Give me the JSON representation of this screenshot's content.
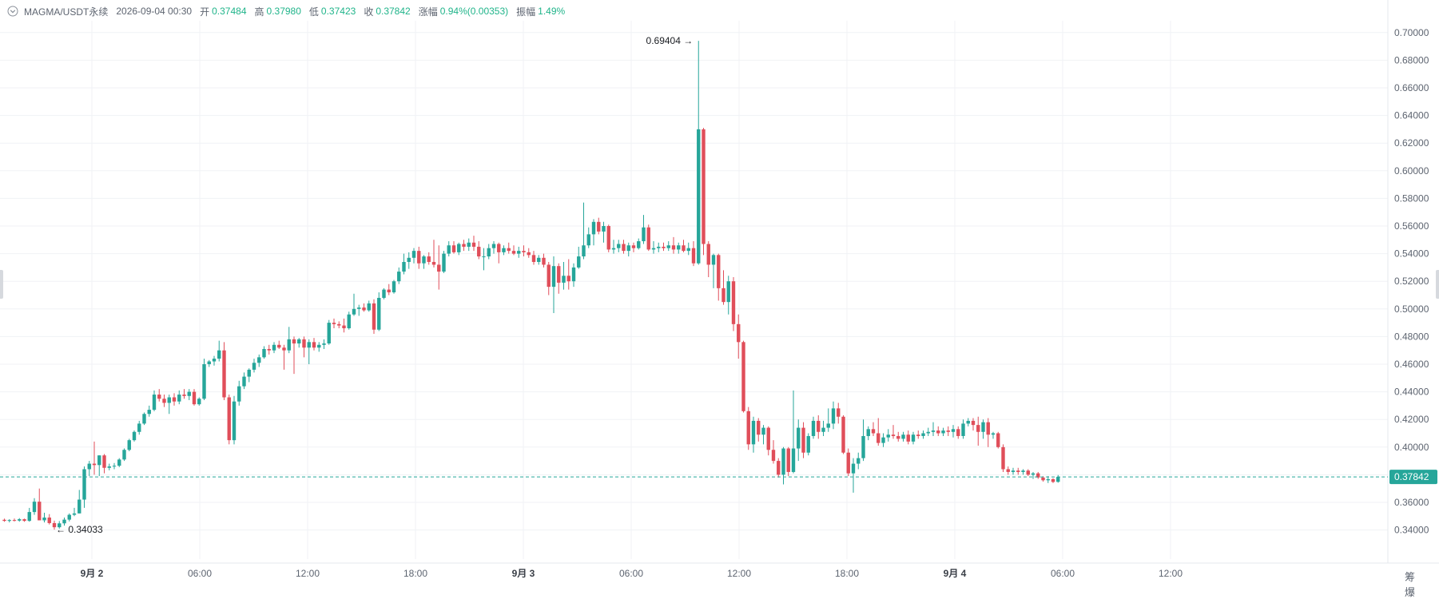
{
  "header": {
    "symbol": "MAGMA/USDT永续",
    "datetime": "2026-09-04 00:30",
    "open_label": "开",
    "open": "0.37484",
    "high_label": "高",
    "high": "0.37980",
    "low_label": "低",
    "low": "0.37423",
    "close_label": "收",
    "close": "0.37842",
    "change_label": "涨幅",
    "change": "0.94%(0.00353)",
    "amplitude_label": "振幅",
    "amplitude": "1.49%"
  },
  "footer_tools": {
    "tool1": "筹",
    "tool2": "爆"
  },
  "chart_data": {
    "type": "candlestick",
    "interval_minutes": 30,
    "colors": {
      "up": "#26a69a",
      "down": "#e04e5a",
      "price_line": "#26a69a",
      "price_tag": "#26a69a"
    },
    "y_range": [
      0.326,
      0.707
    ],
    "y_ticks": [
      "0.70000",
      "0.68000",
      "0.66000",
      "0.64000",
      "0.62000",
      "0.60000",
      "0.58000",
      "0.56000",
      "0.54000",
      "0.52000",
      "0.50000",
      "0.48000",
      "0.46000",
      "0.44000",
      "0.42000",
      "0.40000",
      "0.38000",
      "0.36000",
      "0.34000"
    ],
    "x_ticks": [
      "9月 2",
      "06:00",
      "12:00",
      "18:00",
      "9月 3",
      "06:00",
      "12:00",
      "18:00",
      "9月 4",
      "06:00",
      "12:00"
    ],
    "current_price": "0.37842",
    "annotations": [
      {
        "label": "0.69404",
        "value": 0.69404,
        "type": "high"
      },
      {
        "label": "0.34033",
        "value": 0.34033,
        "type": "low"
      }
    ],
    "grid": true,
    "candles": [
      [
        0.3474,
        0.3482,
        0.346,
        0.3466
      ],
      [
        0.3466,
        0.3478,
        0.3455,
        0.3472
      ],
      [
        0.3472,
        0.3483,
        0.3462,
        0.3468
      ],
      [
        0.3468,
        0.3486,
        0.346,
        0.3478
      ],
      [
        0.3478,
        0.3482,
        0.346,
        0.3466
      ],
      [
        0.3466,
        0.356,
        0.346,
        0.353
      ],
      [
        0.353,
        0.363,
        0.351,
        0.3605
      ],
      [
        0.3605,
        0.37,
        0.347,
        0.347
      ],
      [
        0.347,
        0.3525,
        0.3455,
        0.349
      ],
      [
        0.349,
        0.3515,
        0.344,
        0.345
      ],
      [
        0.345,
        0.3468,
        0.3403,
        0.342
      ],
      [
        0.342,
        0.3465,
        0.341,
        0.3448
      ],
      [
        0.3448,
        0.349,
        0.3432,
        0.3475
      ],
      [
        0.3475,
        0.352,
        0.3462,
        0.351
      ],
      [
        0.351,
        0.356,
        0.35,
        0.352
      ],
      [
        0.352,
        0.369,
        0.352,
        0.362
      ],
      [
        0.362,
        0.386,
        0.356,
        0.384
      ],
      [
        0.384,
        0.39,
        0.379,
        0.388
      ],
      [
        0.388,
        0.404,
        0.38,
        0.387
      ],
      [
        0.387,
        0.394,
        0.379,
        0.394
      ],
      [
        0.394,
        0.395,
        0.381,
        0.385
      ],
      [
        0.385,
        0.388,
        0.3832,
        0.386
      ],
      [
        0.386,
        0.3885,
        0.384,
        0.3865
      ],
      [
        0.3865,
        0.392,
        0.3855,
        0.391
      ],
      [
        0.391,
        0.399,
        0.39,
        0.398
      ],
      [
        0.398,
        0.406,
        0.397,
        0.405
      ],
      [
        0.405,
        0.412,
        0.404,
        0.411
      ],
      [
        0.411,
        0.419,
        0.409,
        0.417
      ],
      [
        0.417,
        0.425,
        0.416,
        0.424
      ],
      [
        0.424,
        0.43,
        0.422,
        0.427
      ],
      [
        0.427,
        0.441,
        0.426,
        0.438
      ],
      [
        0.438,
        0.442,
        0.433,
        0.435
      ],
      [
        0.435,
        0.438,
        0.429,
        0.432
      ],
      [
        0.432,
        0.438,
        0.424,
        0.436
      ],
      [
        0.436,
        0.439,
        0.43,
        0.433
      ],
      [
        0.433,
        0.441,
        0.431,
        0.438
      ],
      [
        0.438,
        0.442,
        0.435,
        0.437
      ],
      [
        0.437,
        0.442,
        0.434,
        0.44
      ],
      [
        0.44,
        0.442,
        0.43,
        0.431
      ],
      [
        0.431,
        0.436,
        0.43,
        0.435
      ],
      [
        0.435,
        0.464,
        0.434,
        0.46
      ],
      [
        0.46,
        0.463,
        0.458,
        0.462
      ],
      [
        0.462,
        0.466,
        0.459,
        0.464
      ],
      [
        0.464,
        0.477,
        0.462,
        0.47
      ],
      [
        0.47,
        0.476,
        0.434,
        0.436
      ],
      [
        0.436,
        0.438,
        0.402,
        0.405
      ],
      [
        0.405,
        0.437,
        0.402,
        0.433
      ],
      [
        0.433,
        0.448,
        0.43,
        0.444
      ],
      [
        0.444,
        0.454,
        0.442,
        0.451
      ],
      [
        0.451,
        0.457,
        0.447,
        0.456
      ],
      [
        0.456,
        0.464,
        0.454,
        0.461
      ],
      [
        0.461,
        0.467,
        0.458,
        0.465
      ],
      [
        0.465,
        0.473,
        0.464,
        0.471
      ],
      [
        0.471,
        0.474,
        0.467,
        0.47
      ],
      [
        0.47,
        0.476,
        0.468,
        0.474
      ],
      [
        0.474,
        0.477,
        0.471,
        0.472
      ],
      [
        0.472,
        0.474,
        0.456,
        0.47
      ],
      [
        0.47,
        0.487,
        0.468,
        0.478
      ],
      [
        0.478,
        0.48,
        0.453,
        0.475
      ],
      [
        0.475,
        0.479,
        0.472,
        0.478
      ],
      [
        0.478,
        0.48,
        0.465,
        0.472
      ],
      [
        0.472,
        0.478,
        0.46,
        0.476
      ],
      [
        0.476,
        0.479,
        0.47,
        0.472
      ],
      [
        0.472,
        0.476,
        0.469,
        0.474
      ],
      [
        0.474,
        0.478,
        0.471,
        0.475
      ],
      [
        0.475,
        0.492,
        0.474,
        0.49
      ],
      [
        0.49,
        0.493,
        0.486,
        0.489
      ],
      [
        0.489,
        0.491,
        0.486,
        0.488
      ],
      [
        0.488,
        0.493,
        0.483,
        0.486
      ],
      [
        0.486,
        0.498,
        0.485,
        0.496
      ],
      [
        0.496,
        0.511,
        0.495,
        0.5
      ],
      [
        0.5,
        0.503,
        0.495,
        0.501
      ],
      [
        0.501,
        0.504,
        0.498,
        0.499
      ],
      [
        0.499,
        0.506,
        0.498,
        0.504
      ],
      [
        0.504,
        0.507,
        0.482,
        0.485
      ],
      [
        0.485,
        0.512,
        0.484,
        0.508
      ],
      [
        0.508,
        0.515,
        0.507,
        0.514
      ],
      [
        0.514,
        0.518,
        0.51,
        0.512
      ],
      [
        0.512,
        0.521,
        0.511,
        0.52
      ],
      [
        0.52,
        0.53,
        0.518,
        0.527
      ],
      [
        0.527,
        0.54,
        0.525,
        0.534
      ],
      [
        0.534,
        0.541,
        0.529,
        0.537
      ],
      [
        0.537,
        0.544,
        0.533,
        0.542
      ],
      [
        0.542,
        0.545,
        0.529,
        0.533
      ],
      [
        0.533,
        0.539,
        0.529,
        0.538
      ],
      [
        0.538,
        0.541,
        0.532,
        0.534
      ],
      [
        0.534,
        0.55,
        0.53,
        0.532
      ],
      [
        0.532,
        0.546,
        0.514,
        0.527
      ],
      [
        0.527,
        0.542,
        0.526,
        0.54
      ],
      [
        0.54,
        0.549,
        0.538,
        0.546
      ],
      [
        0.546,
        0.549,
        0.54,
        0.541
      ],
      [
        0.541,
        0.548,
        0.539,
        0.547
      ],
      [
        0.547,
        0.55,
        0.542,
        0.545
      ],
      [
        0.545,
        0.551,
        0.542,
        0.548
      ],
      [
        0.548,
        0.553,
        0.542,
        0.545
      ],
      [
        0.545,
        0.549,
        0.536,
        0.538
      ],
      [
        0.538,
        0.544,
        0.528,
        0.538
      ],
      [
        0.538,
        0.547,
        0.536,
        0.544
      ],
      [
        0.544,
        0.549,
        0.54,
        0.547
      ],
      [
        0.547,
        0.548,
        0.533,
        0.541
      ],
      [
        0.541,
        0.546,
        0.539,
        0.544
      ],
      [
        0.544,
        0.548,
        0.54,
        0.542
      ],
      [
        0.542,
        0.546,
        0.539,
        0.54
      ],
      [
        0.54,
        0.545,
        0.537,
        0.542
      ],
      [
        0.542,
        0.546,
        0.538,
        0.541
      ],
      [
        0.541,
        0.544,
        0.537,
        0.539
      ],
      [
        0.539,
        0.542,
        0.532,
        0.534
      ],
      [
        0.534,
        0.539,
        0.532,
        0.537
      ],
      [
        0.537,
        0.54,
        0.53,
        0.532
      ],
      [
        0.532,
        0.534,
        0.51,
        0.516
      ],
      [
        0.516,
        0.538,
        0.497,
        0.531
      ],
      [
        0.531,
        0.533,
        0.511,
        0.519
      ],
      [
        0.519,
        0.534,
        0.514,
        0.524
      ],
      [
        0.524,
        0.536,
        0.514,
        0.52
      ],
      [
        0.52,
        0.533,
        0.516,
        0.53
      ],
      [
        0.53,
        0.545,
        0.529,
        0.538
      ],
      [
        0.538,
        0.577,
        0.536,
        0.546
      ],
      [
        0.546,
        0.559,
        0.544,
        0.554
      ],
      [
        0.554,
        0.565,
        0.546,
        0.563
      ],
      [
        0.563,
        0.566,
        0.554,
        0.556
      ],
      [
        0.556,
        0.563,
        0.548,
        0.56
      ],
      [
        0.56,
        0.561,
        0.541,
        0.543
      ],
      [
        0.543,
        0.55,
        0.54,
        0.544
      ],
      [
        0.544,
        0.55,
        0.541,
        0.547
      ],
      [
        0.547,
        0.55,
        0.54,
        0.542
      ],
      [
        0.542,
        0.548,
        0.538,
        0.546
      ],
      [
        0.546,
        0.548,
        0.541,
        0.544
      ],
      [
        0.544,
        0.551,
        0.543,
        0.549
      ],
      [
        0.549,
        0.568,
        0.547,
        0.559
      ],
      [
        0.559,
        0.561,
        0.542,
        0.543
      ],
      [
        0.543,
        0.549,
        0.54,
        0.544
      ],
      [
        0.544,
        0.548,
        0.541,
        0.545
      ],
      [
        0.545,
        0.548,
        0.542,
        0.544
      ],
      [
        0.544,
        0.549,
        0.542,
        0.546
      ],
      [
        0.546,
        0.552,
        0.54,
        0.543
      ],
      [
        0.543,
        0.548,
        0.54,
        0.546
      ],
      [
        0.546,
        0.55,
        0.541,
        0.542
      ],
      [
        0.542,
        0.548,
        0.539,
        0.544
      ],
      [
        0.544,
        0.549,
        0.531,
        0.533
      ],
      [
        0.533,
        0.694,
        0.532,
        0.63
      ],
      [
        0.63,
        0.631,
        0.539,
        0.547
      ],
      [
        0.547,
        0.549,
        0.523,
        0.532
      ],
      [
        0.532,
        0.54,
        0.515,
        0.539
      ],
      [
        0.539,
        0.54,
        0.506,
        0.515
      ],
      [
        0.515,
        0.528,
        0.503,
        0.505
      ],
      [
        0.505,
        0.524,
        0.496,
        0.52
      ],
      [
        0.52,
        0.523,
        0.484,
        0.489
      ],
      [
        0.489,
        0.496,
        0.464,
        0.476
      ],
      [
        0.476,
        0.477,
        0.425,
        0.426
      ],
      [
        0.426,
        0.429,
        0.398,
        0.402
      ],
      [
        0.402,
        0.422,
        0.396,
        0.419
      ],
      [
        0.419,
        0.421,
        0.404,
        0.409
      ],
      [
        0.409,
        0.416,
        0.402,
        0.414
      ],
      [
        0.414,
        0.415,
        0.394,
        0.398
      ],
      [
        0.398,
        0.405,
        0.388,
        0.39
      ],
      [
        0.39,
        0.392,
        0.378,
        0.38
      ],
      [
        0.38,
        0.4,
        0.373,
        0.399
      ],
      [
        0.399,
        0.4,
        0.379,
        0.382
      ],
      [
        0.382,
        0.441,
        0.381,
        0.399
      ],
      [
        0.399,
        0.42,
        0.39,
        0.414
      ],
      [
        0.414,
        0.418,
        0.392,
        0.396
      ],
      [
        0.396,
        0.41,
        0.394,
        0.408
      ],
      [
        0.408,
        0.422,
        0.406,
        0.419
      ],
      [
        0.419,
        0.423,
        0.406,
        0.411
      ],
      [
        0.411,
        0.419,
        0.408,
        0.414
      ],
      [
        0.414,
        0.428,
        0.411,
        0.417
      ],
      [
        0.417,
        0.433,
        0.413,
        0.428
      ],
      [
        0.428,
        0.432,
        0.417,
        0.422
      ],
      [
        0.422,
        0.423,
        0.395,
        0.396
      ],
      [
        0.396,
        0.399,
        0.379,
        0.381
      ],
      [
        0.381,
        0.392,
        0.367,
        0.388
      ],
      [
        0.388,
        0.396,
        0.384,
        0.392
      ],
      [
        0.392,
        0.42,
        0.39,
        0.408
      ],
      [
        0.408,
        0.415,
        0.405,
        0.413
      ],
      [
        0.413,
        0.418,
        0.408,
        0.41
      ],
      [
        0.41,
        0.421,
        0.401,
        0.403
      ],
      [
        0.403,
        0.41,
        0.4,
        0.407
      ],
      [
        0.407,
        0.413,
        0.404,
        0.409
      ],
      [
        0.409,
        0.416,
        0.406,
        0.408
      ],
      [
        0.408,
        0.411,
        0.404,
        0.406
      ],
      [
        0.406,
        0.411,
        0.404,
        0.409
      ],
      [
        0.409,
        0.412,
        0.402,
        0.404
      ],
      [
        0.404,
        0.411,
        0.402,
        0.409
      ],
      [
        0.409,
        0.412,
        0.406,
        0.408
      ],
      [
        0.408,
        0.412,
        0.406,
        0.41
      ],
      [
        0.41,
        0.414,
        0.408,
        0.411
      ],
      [
        0.411,
        0.418,
        0.408,
        0.412
      ],
      [
        0.412,
        0.415,
        0.408,
        0.41
      ],
      [
        0.41,
        0.414,
        0.408,
        0.412
      ],
      [
        0.412,
        0.415,
        0.408,
        0.411
      ],
      [
        0.411,
        0.416,
        0.407,
        0.413
      ],
      [
        0.413,
        0.415,
        0.406,
        0.408
      ],
      [
        0.408,
        0.42,
        0.406,
        0.417
      ],
      [
        0.417,
        0.421,
        0.415,
        0.419
      ],
      [
        0.419,
        0.421,
        0.412,
        0.416
      ],
      [
        0.416,
        0.422,
        0.401,
        0.411
      ],
      [
        0.411,
        0.42,
        0.406,
        0.418
      ],
      [
        0.418,
        0.421,
        0.4,
        0.409
      ],
      [
        0.409,
        0.411,
        0.406,
        0.41
      ],
      [
        0.41,
        0.411,
        0.399,
        0.4
      ],
      [
        0.4,
        0.402,
        0.382,
        0.384
      ],
      [
        0.384,
        0.386,
        0.38,
        0.382
      ],
      [
        0.382,
        0.385,
        0.38,
        0.383
      ],
      [
        0.383,
        0.385,
        0.38,
        0.382
      ],
      [
        0.382,
        0.384,
        0.38,
        0.383
      ],
      [
        0.383,
        0.384,
        0.379,
        0.38
      ],
      [
        0.38,
        0.382,
        0.377,
        0.381
      ],
      [
        0.381,
        0.382,
        0.377,
        0.378
      ],
      [
        0.378,
        0.379,
        0.375,
        0.376
      ],
      [
        0.376,
        0.379,
        0.374,
        0.3768
      ],
      [
        0.3768,
        0.3775,
        0.374,
        0.3748
      ],
      [
        0.37484,
        0.3798,
        0.37423,
        0.37842
      ]
    ]
  }
}
